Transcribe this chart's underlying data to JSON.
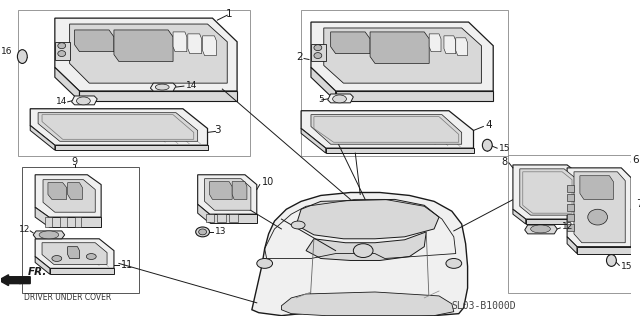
{
  "bg_color": "#ffffff",
  "line_color": "#1a1a1a",
  "fill_light": "#f0f0f0",
  "fill_mid": "#d8d8d8",
  "fill_dark": "#b8b8b8",
  "bottom_text": "SL03-B1000D",
  "fr_label": "FR.",
  "driver_under_cover": "DRIVER UNDER COVER"
}
